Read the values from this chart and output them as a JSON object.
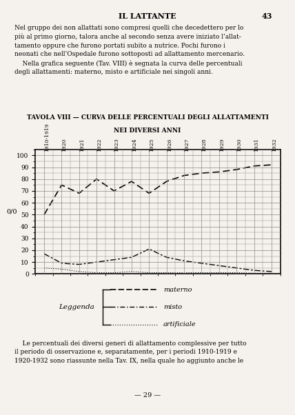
{
  "title_line1": "TAVOLA VIII — CURVA DELLE PERCENTUALI DEGLI ALLATTAMENTI",
  "title_line2": "NEI DIVERSI ANNI",
  "header": "IL LATTANTE",
  "page_number": "43",
  "x_labels": [
    "1910-1919",
    "1920",
    "1921",
    "1922",
    "1923",
    "1924",
    "1925",
    "1926",
    "1927",
    "1928",
    "1929",
    "1930",
    "1931",
    "1932"
  ],
  "x_positions": [
    0,
    1,
    2,
    3,
    4,
    5,
    6,
    7,
    8,
    9,
    10,
    11,
    12,
    13
  ],
  "ylabel": "0/0",
  "ylim": [
    0,
    105
  ],
  "yticks": [
    0,
    10,
    20,
    30,
    40,
    50,
    60,
    70,
    80,
    90,
    100
  ],
  "materno": [
    50,
    75,
    68,
    80,
    70,
    78,
    68,
    78,
    83,
    85,
    86,
    88,
    91,
    92
  ],
  "misto": [
    17,
    9,
    8,
    10,
    12,
    14,
    21,
    14,
    11,
    9,
    7,
    5,
    3,
    2
  ],
  "artificiale": [
    5,
    4,
    2,
    1,
    1,
    2,
    1,
    1,
    1,
    1,
    1,
    1,
    0.5,
    0.5
  ],
  "legend_label": "Leggenda",
  "legend_materno": "materno",
  "legend_misto": "misto",
  "legend_artificiale": "artificiale",
  "paragraph": "Nel gruppo dei non allattati sono compresi quelli che decedettero per lo\npiù al primo giorno, talora anche al secondo senza avere iniziato l’allat-\ntamento oppure che furono portati subito a nutrice. Pochi furono i\nneonati che nell’Ospedale furono sottoposti ad allattamento mercenario.\n    Nella grafica seguente (Tav. VIII) è segnata la curva delle percentuali\ndegli allattamenti: materno, misto e artificiale nei singoli anni.",
  "footer": "    Le percentuali dei diversi generi di allattamento complessive per tutto\nil periodo di osservazione e, separatamente, per i periodi 1910-1919 e\n1920-1932 sono riassunte nella Tav. IX, nella quale ho aggiunto anche le",
  "bottom_page": "— 29 —",
  "bg_color": "#f5f2ed",
  "grid_color": "#888888"
}
